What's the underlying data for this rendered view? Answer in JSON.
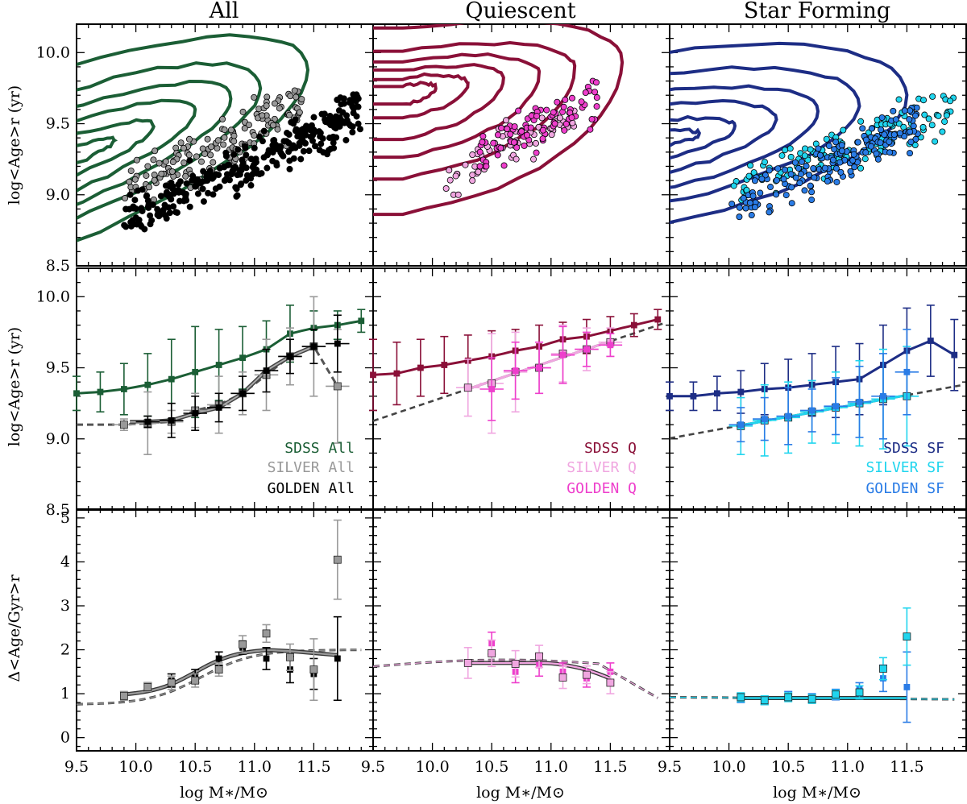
{
  "figure": {
    "column_titles": [
      "All",
      "Quiescent",
      "Star Forming"
    ],
    "xlabel": "log M∗/M⊙",
    "xlim": [
      9.5,
      12.0
    ],
    "x_ticks": [
      "9.5",
      "10.0",
      "10.5",
      "11.0",
      "11.5"
    ],
    "row_ylabels": [
      "log<Age>r (yr)",
      "log<Age>r (yr)",
      "Δ<Age/Gyr>r"
    ],
    "row_ylims": [
      [
        8.5,
        10.2
      ],
      [
        8.5,
        10.2
      ],
      [
        -0.3,
        5.2
      ]
    ],
    "row_yticks": [
      [
        "8.5",
        "9.0",
        "9.5",
        "10.0"
      ],
      [
        "8.5",
        "9.0",
        "9.5",
        "10.0"
      ],
      [
        "0",
        "1",
        "2",
        "3",
        "4",
        "5"
      ]
    ]
  },
  "colors": {
    "all": {
      "sdss": "#1b5e35",
      "silver": "#999999",
      "golden": "#000000"
    },
    "q": {
      "sdss": "#8a1038",
      "silver": "#f0a6e0",
      "golden": "#ee3fcc"
    },
    "sf": {
      "sdss": "#1d2d85",
      "silver": "#20d5ee",
      "golden": "#2a7ce6"
    }
  },
  "legends": {
    "all": [
      "SDSS All",
      "SILVER All",
      "GOLDEN All"
    ],
    "q": [
      "SDSS Q",
      "SILVER Q",
      "GOLDEN Q"
    ],
    "sf": [
      "SDSS SF",
      "SILVER SF",
      "GOLDEN SF"
    ]
  },
  "chart_data": [
    {
      "type": "scatter",
      "panel": "row1-All",
      "title": "All",
      "xlabel": "log M∗/M⊙",
      "ylabel": "log<Age>r (yr)",
      "ylim": [
        8.5,
        10.2
      ],
      "series": [
        {
          "name": "SDSS All (contours)",
          "contour_levels": 6
        },
        {
          "name": "SILVER All",
          "approx_points": 150,
          "x_range": [
            9.9,
            11.4
          ],
          "y_range": [
            8.9,
            9.8
          ]
        },
        {
          "name": "GOLDEN All",
          "approx_points": 300,
          "x_range": [
            9.9,
            11.9
          ],
          "y_range": [
            8.65,
            9.8
          ]
        }
      ]
    },
    {
      "type": "scatter",
      "panel": "row1-Quiescent",
      "title": "Quiescent",
      "xlabel": "log M∗/M⊙",
      "ylabel": "log<Age>r (yr)",
      "ylim": [
        8.5,
        10.2
      ],
      "series": [
        {
          "name": "SDSS Q (contours)",
          "contour_levels": 6
        },
        {
          "name": "SILVER Q",
          "approx_points": 60,
          "x_range": [
            10.1,
            11.2
          ],
          "y_range": [
            9.0,
            9.7
          ]
        },
        {
          "name": "GOLDEN Q",
          "approx_points": 90,
          "x_range": [
            10.4,
            11.4
          ],
          "y_range": [
            9.2,
            9.8
          ]
        }
      ]
    },
    {
      "type": "scatter",
      "panel": "row1-Star Forming",
      "title": "Star Forming",
      "xlabel": "log M∗/M⊙",
      "ylabel": "log<Age>r (yr)",
      "ylim": [
        8.5,
        10.2
      ],
      "series": [
        {
          "name": "SDSS SF (contours)",
          "contour_levels": 6
        },
        {
          "name": "SILVER SF",
          "approx_points": 130,
          "x_range": [
            10.0,
            11.9
          ],
          "y_range": [
            8.9,
            9.8
          ]
        },
        {
          "name": "GOLDEN SF",
          "approx_points": 170,
          "x_range": [
            10.0,
            11.6
          ],
          "y_range": [
            8.75,
            9.7
          ]
        }
      ]
    },
    {
      "type": "line",
      "panel": "row2-All",
      "xlabel": "log M∗/M⊙",
      "ylabel": "log<Age>r (yr)",
      "ylim": [
        8.5,
        10.2
      ],
      "series": [
        {
          "name": "SDSS All",
          "x": [
            9.5,
            9.7,
            9.9,
            10.1,
            10.3,
            10.5,
            10.7,
            10.9,
            11.1,
            11.3,
            11.5,
            11.7,
            11.9
          ],
          "y": [
            9.32,
            9.33,
            9.35,
            9.38,
            9.42,
            9.47,
            9.52,
            9.57,
            9.63,
            9.74,
            9.78,
            9.8,
            9.83
          ],
          "yerr": [
            0.12,
            0.14,
            0.18,
            0.22,
            0.28,
            0.32,
            0.25,
            0.22,
            0.2,
            0.2,
            0.12,
            0.1,
            0.08
          ]
        },
        {
          "name": "SILVER All",
          "x": [
            9.9,
            10.1,
            10.3,
            10.5,
            10.7,
            10.9,
            11.1,
            11.3,
            11.5,
            11.7
          ],
          "y": [
            9.1,
            9.11,
            9.12,
            9.2,
            9.24,
            9.32,
            9.45,
            9.58,
            9.65,
            9.37
          ],
          "yerr": [
            0.04,
            0.22,
            0.08,
            0.12,
            0.2,
            0.15,
            0.25,
            0.2,
            0.35,
            0.4
          ]
        },
        {
          "name": "GOLDEN All",
          "x": [
            10.1,
            10.3,
            10.5,
            10.7,
            10.9,
            11.1,
            11.3,
            11.5,
            11.7
          ],
          "y": [
            9.12,
            9.13,
            9.18,
            9.22,
            9.32,
            9.48,
            9.58,
            9.65,
            9.67
          ],
          "yerr": [
            0.04,
            0.12,
            0.12,
            0.1,
            0.12,
            0.15,
            0.12,
            0.12,
            0.2
          ]
        }
      ]
    },
    {
      "type": "line",
      "panel": "row2-Quiescent",
      "xlabel": "log M∗/M⊙",
      "ylabel": "log<Age>r (yr)",
      "ylim": [
        8.5,
        10.2
      ],
      "series": [
        {
          "name": "SDSS Q",
          "x": [
            9.5,
            9.7,
            9.9,
            10.1,
            10.3,
            10.5,
            10.7,
            10.9,
            11.1,
            11.3,
            11.5,
            11.7,
            11.9
          ],
          "y": [
            9.45,
            9.46,
            9.5,
            9.52,
            9.55,
            9.58,
            9.62,
            9.65,
            9.7,
            9.72,
            9.76,
            9.8,
            9.84
          ],
          "yerr": [
            0.25,
            0.22,
            0.2,
            0.2,
            0.18,
            0.18,
            0.15,
            0.15,
            0.12,
            0.12,
            0.1,
            0.08,
            0.07
          ]
        },
        {
          "name": "SILVER Q",
          "x": [
            10.3,
            10.5,
            10.7,
            10.9,
            11.1,
            11.3,
            11.5
          ],
          "y": [
            9.36,
            9.39,
            9.47,
            9.5,
            9.6,
            9.63,
            9.68
          ],
          "yerr": [
            0.2,
            0.35,
            0.28,
            0.18,
            0.2,
            0.15,
            0.1
          ]
        },
        {
          "name": "GOLDEN Q",
          "x": [
            10.5,
            10.7,
            10.9,
            11.1,
            11.3,
            11.5
          ],
          "y": [
            9.35,
            9.48,
            9.5,
            9.59,
            9.63,
            9.66
          ],
          "yerr": [
            0.22,
            0.2,
            0.18,
            0.2,
            0.12,
            0.08
          ]
        }
      ]
    },
    {
      "type": "line",
      "panel": "row2-Star Forming",
      "xlabel": "log M∗/M⊙",
      "ylabel": "log<Age>r (yr)",
      "ylim": [
        8.5,
        10.2
      ],
      "series": [
        {
          "name": "SDSS SF",
          "x": [
            9.5,
            9.7,
            9.9,
            10.1,
            10.3,
            10.5,
            10.7,
            10.9,
            11.1,
            11.3,
            11.5,
            11.7,
            11.9
          ],
          "y": [
            9.3,
            9.3,
            9.32,
            9.33,
            9.35,
            9.36,
            9.38,
            9.4,
            9.42,
            9.52,
            9.62,
            9.69,
            9.59
          ],
          "yerr": [
            0.1,
            0.1,
            0.12,
            0.15,
            0.18,
            0.2,
            0.22,
            0.25,
            0.25,
            0.28,
            0.3,
            0.25,
            0.25
          ]
        },
        {
          "name": "SILVER SF",
          "x": [
            10.1,
            10.3,
            10.5,
            10.7,
            10.9,
            11.1,
            11.3,
            11.5
          ],
          "y": [
            9.09,
            9.13,
            9.15,
            9.19,
            9.22,
            9.25,
            9.28,
            9.3
          ],
          "yerr": [
            0.2,
            0.25,
            0.25,
            0.22,
            0.25,
            0.3,
            0.35,
            0.35
          ]
        },
        {
          "name": "GOLDEN SF",
          "x": [
            10.1,
            10.3,
            10.5,
            10.7,
            10.9,
            11.1,
            11.3,
            11.5
          ],
          "y": [
            9.1,
            9.14,
            9.16,
            9.2,
            9.23,
            9.26,
            9.3,
            9.47
          ],
          "yerr": [
            0.12,
            0.15,
            0.2,
            0.15,
            0.2,
            0.25,
            0.3,
            0.3
          ]
        }
      ]
    },
    {
      "type": "line",
      "panel": "row3-All",
      "xlabel": "log M∗/M⊙",
      "ylabel": "Δ<Age/Gyr>r",
      "ylim": [
        -0.3,
        5.2
      ],
      "series": [
        {
          "name": "SILVER All",
          "x": [
            9.9,
            10.1,
            10.3,
            10.5,
            10.7,
            10.9,
            11.1,
            11.3,
            11.5,
            11.7
          ],
          "y": [
            0.95,
            1.15,
            1.25,
            1.3,
            1.55,
            2.12,
            2.37,
            1.83,
            1.55,
            4.05
          ],
          "yerr": [
            0.1,
            0.1,
            0.15,
            0.15,
            0.15,
            0.2,
            0.2,
            0.3,
            0.7,
            0.9
          ]
        },
        {
          "name": "GOLDEN All",
          "x": [
            10.1,
            10.3,
            10.5,
            10.7,
            10.9,
            11.1,
            11.3,
            11.5,
            11.7
          ],
          "y": [
            1.15,
            1.3,
            1.4,
            1.8,
            2.05,
            1.8,
            1.55,
            1.45,
            1.8
          ],
          "yerr": [
            0.1,
            0.15,
            0.15,
            0.15,
            0.15,
            0.25,
            0.3,
            0.35,
            0.95
          ]
        }
      ]
    },
    {
      "type": "line",
      "panel": "row3-Quiescent",
      "xlabel": "log M∗/M⊙",
      "ylabel": "Δ<Age/Gyr>r",
      "ylim": [
        -0.3,
        5.2
      ],
      "series": [
        {
          "name": "SILVER Q",
          "x": [
            10.3,
            10.5,
            10.7,
            10.9,
            11.1,
            11.3,
            11.5
          ],
          "y": [
            1.7,
            1.92,
            1.68,
            1.85,
            1.37,
            1.43,
            1.25
          ],
          "yerr": [
            0.35,
            0.3,
            0.3,
            0.25,
            0.25,
            0.2,
            0.25
          ]
        },
        {
          "name": "GOLDEN Q",
          "x": [
            10.5,
            10.7,
            10.9,
            11.1,
            11.3,
            11.5
          ],
          "y": [
            2.15,
            1.5,
            1.65,
            1.5,
            1.35,
            1.5
          ],
          "yerr": [
            0.25,
            0.25,
            0.25,
            0.2,
            0.2,
            0.2
          ]
        }
      ]
    },
    {
      "type": "line",
      "panel": "row3-Star Forming",
      "xlabel": "log M∗/M⊙",
      "ylabel": "Δ<Age/Gyr>r",
      "ylim": [
        -0.3,
        5.2
      ],
      "series": [
        {
          "name": "SILVER SF",
          "x": [
            10.1,
            10.3,
            10.5,
            10.7,
            10.9,
            11.1,
            11.3,
            11.5
          ],
          "y": [
            0.92,
            0.85,
            0.92,
            0.88,
            0.98,
            1.03,
            1.57,
            2.3
          ],
          "yerr": [
            0.1,
            0.1,
            0.1,
            0.1,
            0.1,
            0.15,
            0.25,
            0.65
          ]
        },
        {
          "name": "GOLDEN SF",
          "x": [
            10.1,
            10.3,
            10.5,
            10.7,
            10.9,
            11.1,
            11.3,
            11.5
          ],
          "y": [
            0.9,
            0.85,
            0.95,
            0.9,
            0.98,
            1.1,
            1.35,
            1.15
          ],
          "yerr": [
            0.1,
            0.1,
            0.1,
            0.1,
            0.12,
            0.15,
            0.3,
            0.8
          ]
        }
      ]
    }
  ]
}
